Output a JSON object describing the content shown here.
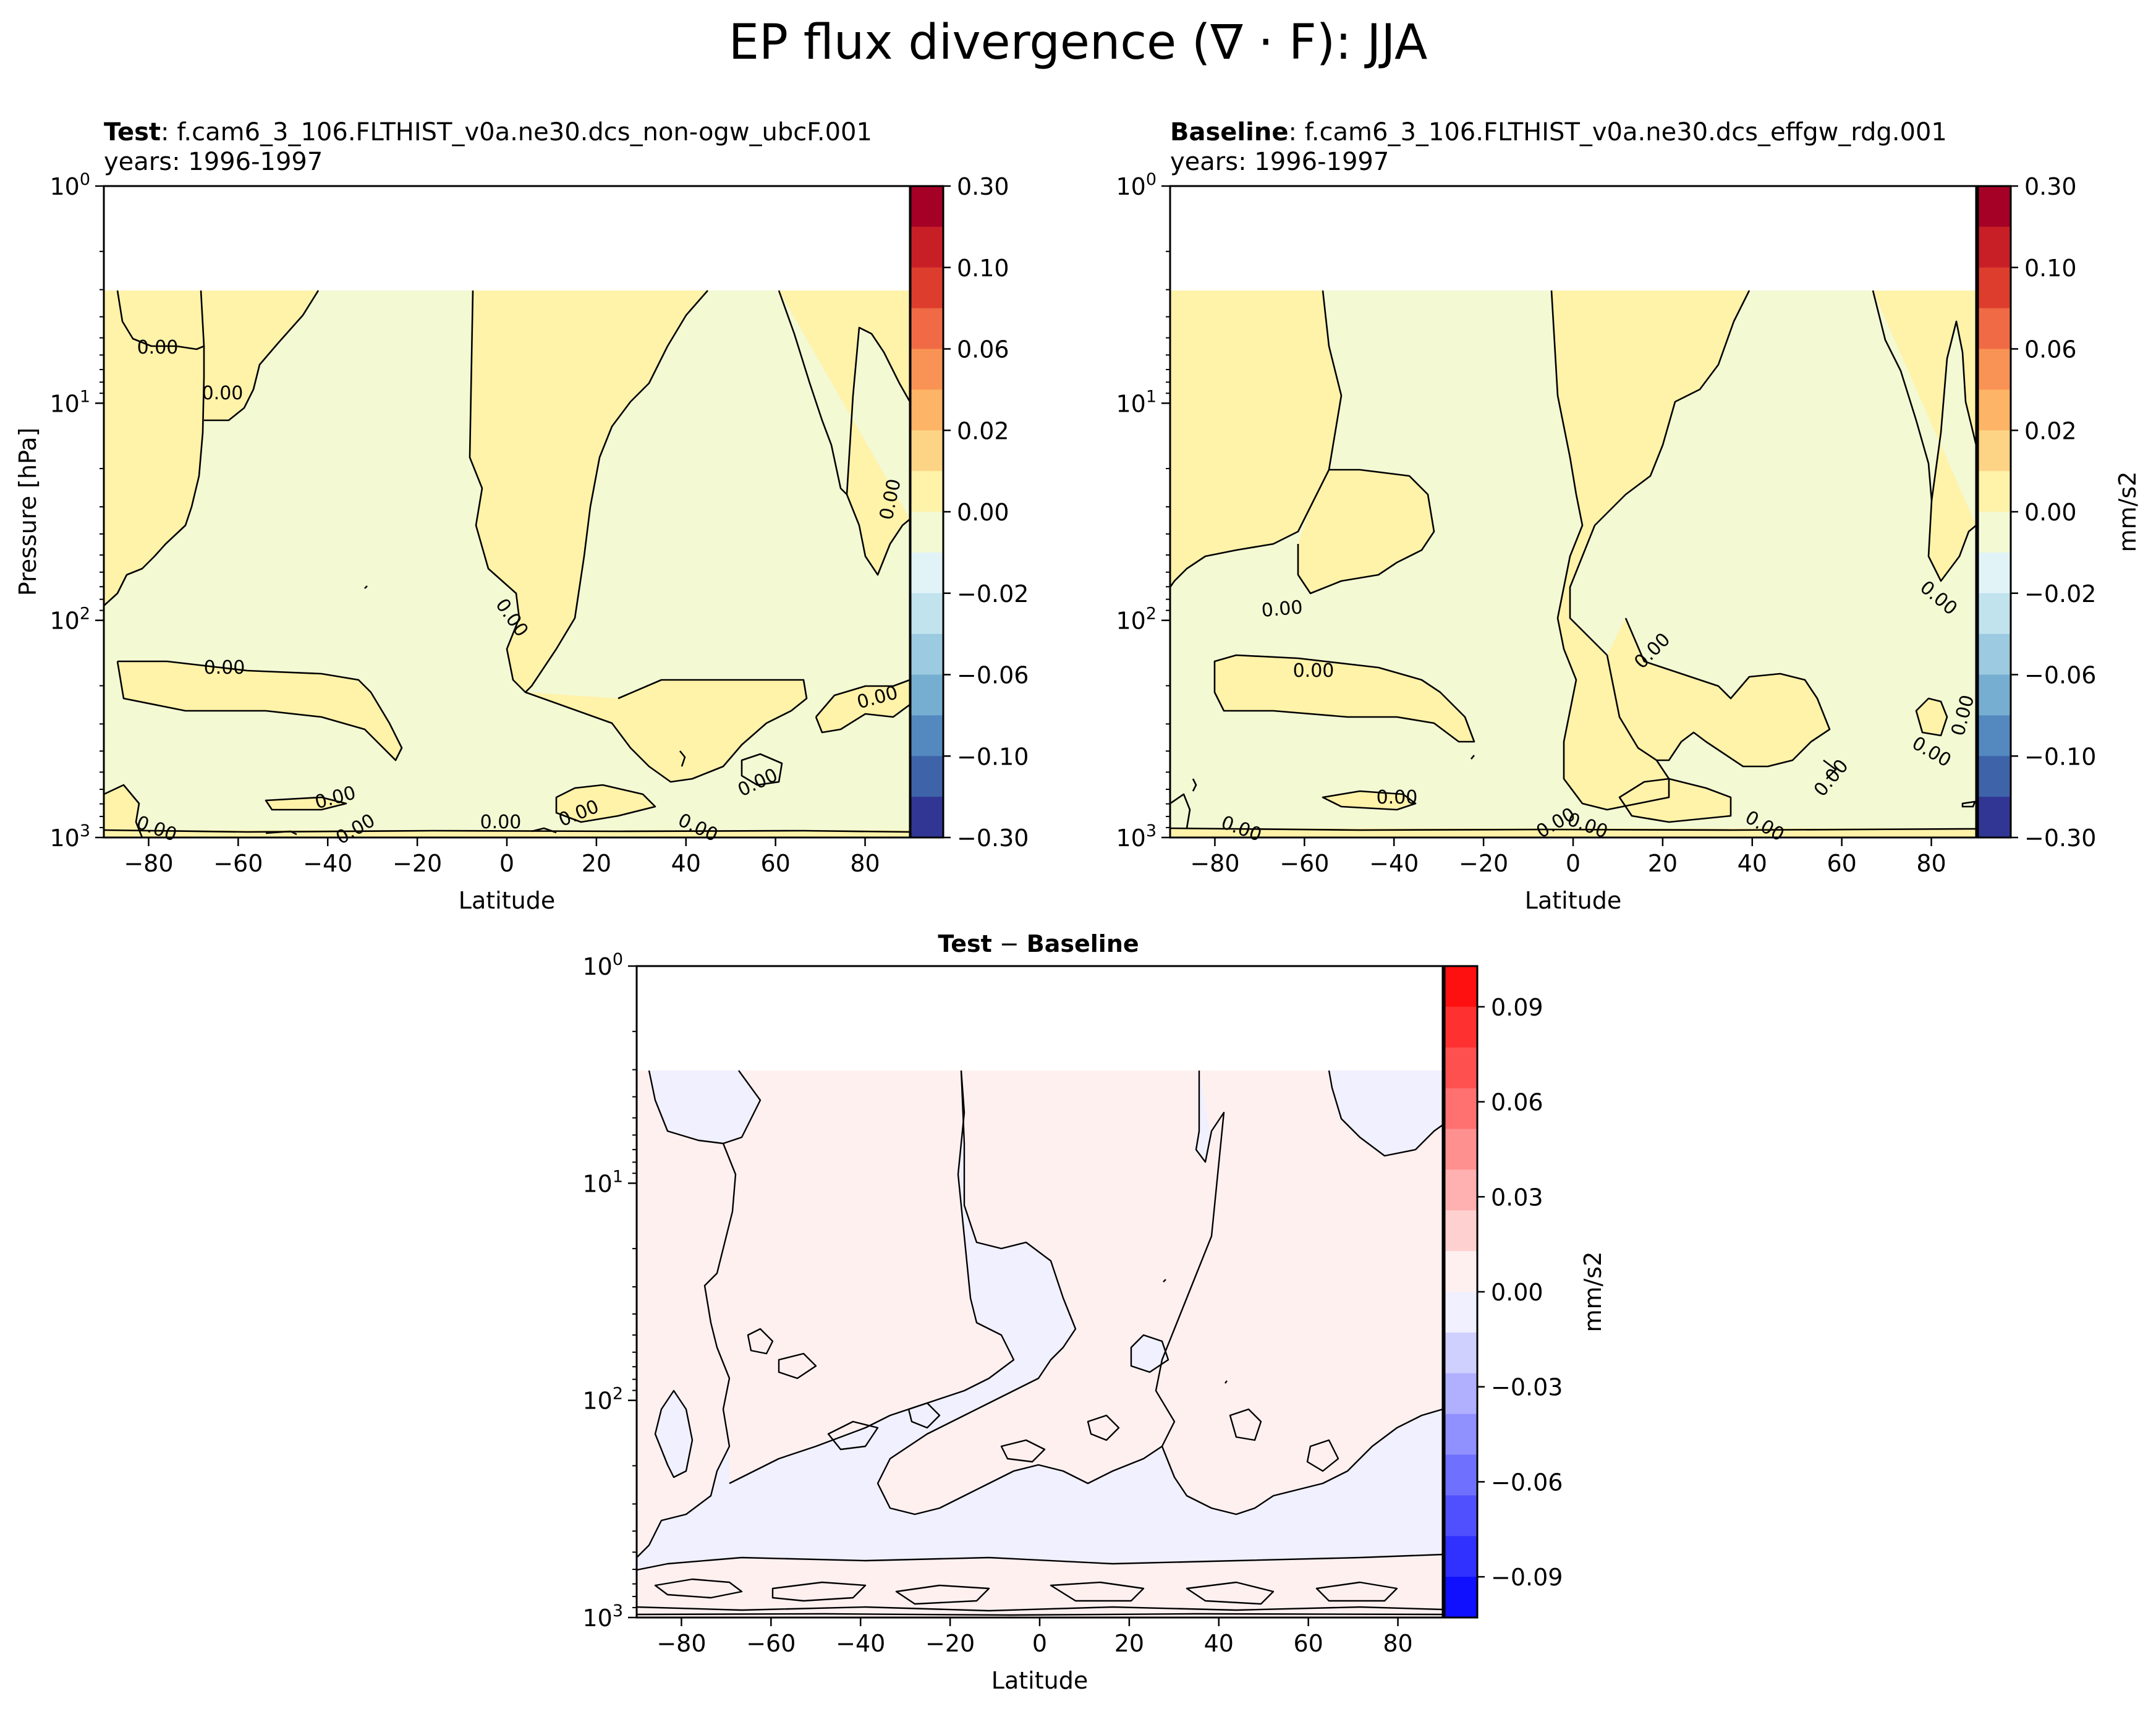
{
  "figure": {
    "title": "EP flux divergence (∇ · F): JJA"
  },
  "chart_data": [
    {
      "type": "contour",
      "panel": "test",
      "label_bold": "Test",
      "label_rest": ": f.cam6_3_106.FLTHIST_v0a.ne30.dcs_non-ogw_ubcF.001",
      "subtitle": "years: 1996-1997",
      "xlabel": "Latitude",
      "ylabel": "Pressure [hPa]",
      "xlim": [
        -90,
        90
      ],
      "ylim": [
        1000,
        1
      ],
      "yscale": "log",
      "xticks": [
        -80,
        -60,
        -40,
        -20,
        0,
        20,
        40,
        60,
        80
      ],
      "yticks": [
        "10^0",
        "10^1",
        "10^2",
        "10^3"
      ],
      "data_top_hpa": 3,
      "contour_label": "0.00",
      "colorbar": {
        "ticks": [
          "0.30",
          "0.10",
          "0.06",
          "0.02",
          "0.00",
          "−0.02",
          "−0.06",
          "−0.10",
          "−0.30"
        ],
        "label": "",
        "colors": [
          "#a50026",
          "#c81f27",
          "#dd3d2d",
          "#f06b45",
          "#f99355",
          "#fdb466",
          "#fdd485",
          "#fff2a9",
          "#f3f9d3",
          "#e1f3f7",
          "#c1e3ee",
          "#9ccae0",
          "#76aed2",
          "#5389bf",
          "#3e63a9",
          "#313695"
        ]
      }
    },
    {
      "type": "contour",
      "panel": "baseline",
      "label_bold": "Baseline",
      "label_rest": ": f.cam6_3_106.FLTHIST_v0a.ne30.dcs_effgw_rdg.001",
      "subtitle": "years: 1996-1997",
      "xlabel": "Latitude",
      "ylabel": "",
      "xlim": [
        -90,
        90
      ],
      "ylim": [
        1000,
        1
      ],
      "yscale": "log",
      "xticks": [
        -80,
        -60,
        -40,
        -20,
        0,
        20,
        40,
        60,
        80
      ],
      "yticks": [
        "10^0",
        "10^1",
        "10^2",
        "10^3"
      ],
      "data_top_hpa": 3,
      "contour_label": "0.00",
      "colorbar": {
        "ticks": [
          "0.30",
          "0.10",
          "0.06",
          "0.02",
          "0.00",
          "−0.02",
          "−0.06",
          "−0.10",
          "−0.30"
        ],
        "label": "mm/s2",
        "colors": [
          "#a50026",
          "#c81f27",
          "#dd3d2d",
          "#f06b45",
          "#f99355",
          "#fdb466",
          "#fdd485",
          "#fff2a9",
          "#f3f9d3",
          "#e1f3f7",
          "#c1e3ee",
          "#9ccae0",
          "#76aed2",
          "#5389bf",
          "#3e63a9",
          "#313695"
        ]
      }
    },
    {
      "type": "contour",
      "panel": "difference",
      "title_a": "Test",
      "title_op": " − ",
      "title_b": "Baseline",
      "xlabel": "Latitude",
      "ylabel": "",
      "xlim": [
        -90,
        90
      ],
      "ylim": [
        1000,
        1
      ],
      "yscale": "log",
      "xticks": [
        -80,
        -60,
        -40,
        -20,
        0,
        20,
        40,
        60,
        80
      ],
      "yticks": [
        "10^0",
        "10^1",
        "10^2",
        "10^3"
      ],
      "data_top_hpa": 3,
      "colorbar": {
        "ticks": [
          "0.09",
          "0.06",
          "0.03",
          "0.00",
          "−0.03",
          "−0.06",
          "−0.09"
        ],
        "label": "mm/s2",
        "colors": [
          "#ff1010",
          "#ff3030",
          "#ff5050",
          "#ff7070",
          "#ff9090",
          "#ffb0b0",
          "#ffd0d0",
          "#fff0f0",
          "#f0f0ff",
          "#d0d0ff",
          "#b0b0ff",
          "#9090ff",
          "#7070ff",
          "#5050ff",
          "#3030ff",
          "#1010ff"
        ]
      }
    }
  ]
}
